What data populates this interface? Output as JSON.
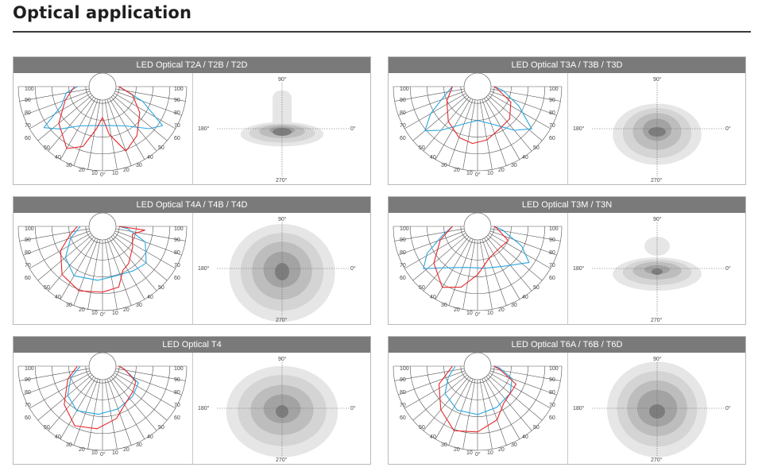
{
  "page": {
    "title": "Optical application"
  },
  "colors": {
    "header_bg": "#7a7a7a",
    "candela_1": "#e8262b",
    "candela_2": "#29a6df"
  },
  "polar_labels": {
    "left_side": [
      "100",
      "90",
      "80",
      "70",
      "60",
      "50",
      "40",
      "30",
      "20",
      "10",
      "0°"
    ],
    "right_side": [
      "100",
      "90",
      "80",
      "70",
      "60",
      "50",
      "40",
      "30",
      "20",
      "10"
    ]
  },
  "iso_axes": {
    "top": "90°",
    "left": "180°",
    "right": "0°",
    "bottom": "270°"
  },
  "panels": [
    {
      "title": "LED Optical T2A / T2B / T2D",
      "red_curve": [
        [
          90,
          0.25
        ],
        [
          110,
          0.45
        ],
        [
          130,
          0.75
        ],
        [
          150,
          1.0
        ],
        [
          162,
          0.85
        ],
        [
          172,
          0.5
        ],
        [
          180,
          0.3
        ],
        [
          188,
          0.6
        ],
        [
          200,
          0.95
        ],
        [
          215,
          0.8
        ],
        [
          235,
          0.55
        ],
        [
          255,
          0.3
        ],
        [
          270,
          0.05
        ]
      ],
      "blue_curve": [
        [
          90,
          0.2
        ],
        [
          100,
          0.4
        ],
        [
          115,
          0.55
        ],
        [
          125,
          1.0
        ],
        [
          135,
          0.8
        ],
        [
          150,
          0.55
        ],
        [
          170,
          0.45
        ],
        [
          190,
          0.45
        ],
        [
          210,
          0.55
        ],
        [
          228,
          0.85
        ],
        [
          237,
          1.0
        ],
        [
          250,
          0.5
        ],
        [
          270,
          0.05
        ]
      ],
      "iso_layers": [
        {
          "w": 0.58,
          "h": 0.22,
          "dx": 0.0,
          "dy": 0.1,
          "ew": 0.18,
          "eh": 0.22
        },
        {
          "w": 0.46,
          "h": 0.17,
          "dx": 0.0,
          "dy": 0.08,
          "ew": 0.12,
          "eh": 0.16
        },
        {
          "w": 0.32,
          "h": 0.12,
          "dx": 0.0,
          "dy": 0.05,
          "ew": 0.08,
          "eh": 0.1
        },
        {
          "w": 0.18,
          "h": 0.07,
          "dx": 0.0,
          "dy": 0.03,
          "ew": 0.0,
          "eh": 0.0
        }
      ],
      "iso_core": {
        "rx": 12,
        "ry": 5
      },
      "iso_extra": "t2"
    },
    {
      "title": "LED Optical T3A / T3B / T3D",
      "red_curve": [
        [
          90,
          0.2
        ],
        [
          115,
          0.35
        ],
        [
          140,
          0.55
        ],
        [
          160,
          0.7
        ],
        [
          175,
          0.75
        ],
        [
          190,
          0.7
        ],
        [
          205,
          0.6
        ],
        [
          225,
          0.55
        ],
        [
          245,
          0.4
        ],
        [
          265,
          0.1
        ],
        [
          270,
          0.05
        ]
      ],
      "blue_curve": [
        [
          90,
          0.2
        ],
        [
          105,
          0.35
        ],
        [
          120,
          0.7
        ],
        [
          130,
          0.95
        ],
        [
          140,
          0.75
        ],
        [
          160,
          0.45
        ],
        [
          180,
          0.35
        ],
        [
          200,
          0.45
        ],
        [
          220,
          0.75
        ],
        [
          232,
          0.95
        ],
        [
          245,
          0.55
        ],
        [
          262,
          0.2
        ],
        [
          270,
          0.05
        ]
      ],
      "iso_layers": [
        {
          "w": 0.62,
          "h": 0.55,
          "dx": 0.0,
          "dy": 0.1,
          "ew": 0.0,
          "eh": 0.0
        },
        {
          "w": 0.48,
          "h": 0.45,
          "dx": 0.0,
          "dy": 0.08,
          "ew": 0.0,
          "eh": 0.0
        },
        {
          "w": 0.34,
          "h": 0.33,
          "dx": 0.0,
          "dy": 0.05,
          "ew": 0.0,
          "eh": 0.0
        },
        {
          "w": 0.2,
          "h": 0.2,
          "dx": 0.0,
          "dy": 0.02,
          "ew": 0.0,
          "eh": 0.0
        }
      ],
      "iso_core": {
        "rx": 11,
        "ry": 6
      },
      "iso_extra": "t3"
    },
    {
      "title": "LED Optical T4A / T4B / T4D",
      "red_curve": [
        [
          90,
          0.2
        ],
        [
          105,
          0.35
        ],
        [
          120,
          0.6
        ],
        [
          140,
          0.85
        ],
        [
          160,
          0.95
        ],
        [
          180,
          0.9
        ],
        [
          195,
          0.85
        ],
        [
          205,
          0.6
        ],
        [
          215,
          0.55
        ],
        [
          235,
          0.4
        ],
        [
          255,
          0.3
        ],
        [
          265,
          0.5
        ],
        [
          270,
          0.05
        ]
      ],
      "blue_curve": [
        [
          90,
          0.15
        ],
        [
          110,
          0.35
        ],
        [
          130,
          0.6
        ],
        [
          150,
          0.75
        ],
        [
          175,
          0.7
        ],
        [
          195,
          0.65
        ],
        [
          215,
          0.7
        ],
        [
          230,
          0.75
        ],
        [
          250,
          0.55
        ],
        [
          265,
          0.2
        ],
        [
          270,
          0.05
        ]
      ],
      "iso_layers": [
        {
          "w": 0.74,
          "h": 0.88,
          "dx": 0.0,
          "dy": 0.08,
          "ew": 0.0,
          "eh": 0.0
        },
        {
          "w": 0.58,
          "h": 0.7,
          "dx": 0.0,
          "dy": 0.06,
          "ew": 0.0,
          "eh": 0.0
        },
        {
          "w": 0.42,
          "h": 0.52,
          "dx": 0.0,
          "dy": 0.04,
          "ew": 0.0,
          "eh": 0.0
        },
        {
          "w": 0.26,
          "h": 0.32,
          "dx": 0.0,
          "dy": 0.02,
          "ew": 0.0,
          "eh": 0.0
        }
      ],
      "iso_core": {
        "rx": 9,
        "ry": 11
      },
      "iso_extra": "t4"
    },
    {
      "title": "LED Optical T3M / T3N",
      "red_curve": [
        [
          90,
          0.2
        ],
        [
          110,
          0.45
        ],
        [
          130,
          0.75
        ],
        [
          150,
          0.98
        ],
        [
          165,
          0.85
        ],
        [
          180,
          0.6
        ],
        [
          200,
          0.35
        ],
        [
          225,
          0.3
        ],
        [
          245,
          0.35
        ],
        [
          265,
          0.1
        ],
        [
          270,
          0.05
        ]
      ],
      "blue_curve": [
        [
          90,
          0.2
        ],
        [
          105,
          0.4
        ],
        [
          118,
          0.75
        ],
        [
          128,
          0.95
        ],
        [
          140,
          0.7
        ],
        [
          165,
          0.5
        ],
        [
          190,
          0.5
        ],
        [
          215,
          0.6
        ],
        [
          235,
          0.85
        ],
        [
          246,
          0.6
        ],
        [
          262,
          0.2
        ],
        [
          270,
          0.05
        ]
      ],
      "iso_layers": [
        {
          "w": 0.62,
          "h": 0.3,
          "dx": 0.0,
          "dy": 0.1,
          "ew": 0.0,
          "eh": 0.0
        },
        {
          "w": 0.48,
          "h": 0.23,
          "dx": 0.0,
          "dy": 0.07,
          "ew": 0.0,
          "eh": 0.0
        },
        {
          "w": 0.34,
          "h": 0.16,
          "dx": 0.0,
          "dy": 0.04,
          "ew": 0.0,
          "eh": 0.0
        },
        {
          "w": 0.18,
          "h": 0.08,
          "dx": 0.0,
          "dy": 0.02,
          "ew": 0.0,
          "eh": 0.0
        }
      ],
      "iso_core": {
        "rx": 7,
        "ry": 4
      },
      "iso_extra": "t3m"
    },
    {
      "title": "LED Optical T4",
      "red_curve": [
        [
          90,
          0.2
        ],
        [
          110,
          0.4
        ],
        [
          135,
          0.7
        ],
        [
          155,
          0.9
        ],
        [
          175,
          0.85
        ],
        [
          195,
          0.7
        ],
        [
          215,
          0.5
        ],
        [
          230,
          0.45
        ],
        [
          245,
          0.4
        ],
        [
          262,
          0.15
        ],
        [
          270,
          0.05
        ]
      ],
      "blue_curve": [
        [
          90,
          0.15
        ],
        [
          110,
          0.35
        ],
        [
          130,
          0.55
        ],
        [
          150,
          0.65
        ],
        [
          175,
          0.6
        ],
        [
          200,
          0.55
        ],
        [
          225,
          0.5
        ],
        [
          245,
          0.45
        ],
        [
          262,
          0.15
        ],
        [
          270,
          0.05
        ]
      ],
      "iso_layers": [
        {
          "w": 0.78,
          "h": 0.82,
          "dx": 0.0,
          "dy": 0.06,
          "ew": 0.0,
          "eh": 0.0
        },
        {
          "w": 0.62,
          "h": 0.64,
          "dx": 0.0,
          "dy": 0.04,
          "ew": 0.0,
          "eh": 0.0
        },
        {
          "w": 0.44,
          "h": 0.45,
          "dx": 0.0,
          "dy": 0.03,
          "ew": 0.0,
          "eh": 0.0
        },
        {
          "w": 0.26,
          "h": 0.26,
          "dx": 0.0,
          "dy": 0.01,
          "ew": 0.0,
          "eh": 0.0
        }
      ],
      "iso_core": {
        "rx": 8,
        "ry": 8
      },
      "iso_extra": "t4"
    },
    {
      "title": "LED Optical T6A / T6B / T6D",
      "red_curve": [
        [
          90,
          0.2
        ],
        [
          115,
          0.5
        ],
        [
          140,
          0.75
        ],
        [
          160,
          0.95
        ],
        [
          180,
          0.9
        ],
        [
          200,
          0.75
        ],
        [
          215,
          0.55
        ],
        [
          230,
          0.5
        ],
        [
          245,
          0.5
        ],
        [
          262,
          0.15
        ],
        [
          270,
          0.05
        ]
      ],
      "blue_curve": [
        [
          90,
          0.15
        ],
        [
          110,
          0.3
        ],
        [
          130,
          0.5
        ],
        [
          155,
          0.6
        ],
        [
          180,
          0.6
        ],
        [
          205,
          0.55
        ],
        [
          230,
          0.5
        ],
        [
          250,
          0.4
        ],
        [
          265,
          0.15
        ],
        [
          270,
          0.05
        ]
      ],
      "iso_layers": [
        {
          "w": 0.7,
          "h": 0.86,
          "dx": 0.0,
          "dy": 0.02,
          "ew": 0.0,
          "eh": 0.0
        },
        {
          "w": 0.56,
          "h": 0.68,
          "dx": 0.0,
          "dy": 0.01,
          "ew": 0.0,
          "eh": 0.0
        },
        {
          "w": 0.42,
          "h": 0.5,
          "dx": 0.0,
          "dy": 0.0,
          "ew": 0.0,
          "eh": 0.0
        },
        {
          "w": 0.28,
          "h": 0.33,
          "dx": 0.0,
          "dy": 0.0,
          "ew": 0.0,
          "eh": 0.0
        }
      ],
      "iso_core": {
        "rx": 10,
        "ry": 9
      },
      "iso_extra": "t6"
    }
  ]
}
